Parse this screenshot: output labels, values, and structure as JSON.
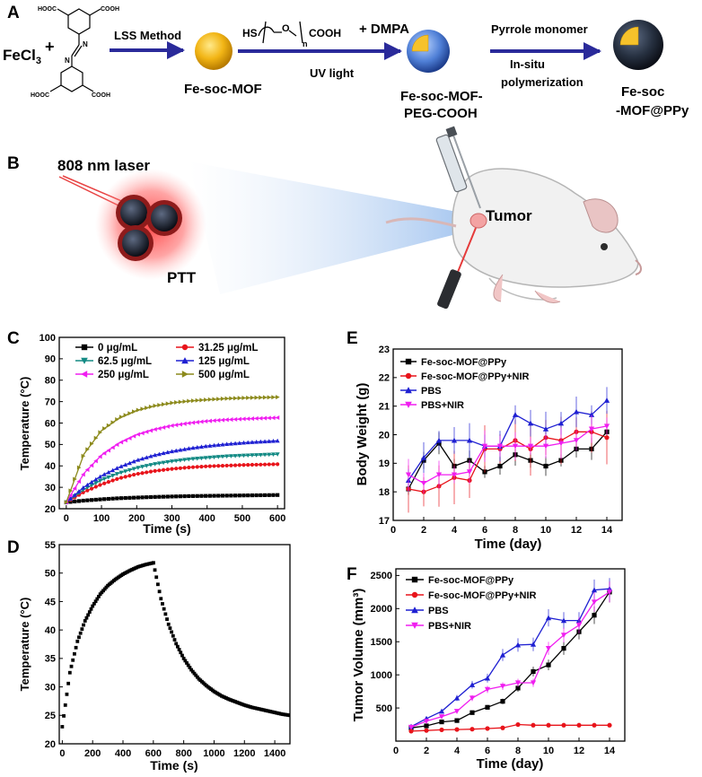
{
  "panel_a": {
    "letter": "A",
    "reagent_fecl3": "FeCl",
    "reagent_fecl3_sub": "3",
    "plus": "+",
    "ligand_cooh_label": "COOH",
    "ligand_hooc_label": "HOOC",
    "ligand_n": "N",
    "step1_label": "LSS Method",
    "product1": "Fe-soc-MOF",
    "peg_hs": "HS",
    "peg_o": "O",
    "peg_n": "n",
    "peg_cooh": "COOH",
    "peg_plus_dmpa": "+ DMPA",
    "step2_label": "UV light",
    "product2_line1": "Fe-soc-MOF-",
    "product2_line2": "PEG-COOH",
    "step3_label_top": "Pyrrole monomer",
    "step3_label_bottom1": "In-situ",
    "step3_label_bottom2": "polymerization",
    "product3_line1": "Fe-soc",
    "product3_line2": "-MOF@PPy"
  },
  "panel_b": {
    "letter": "B",
    "laser_label": "808 nm laser",
    "ptt_label": "PTT",
    "tumor_label": "Tumor"
  },
  "chart_data": [
    {
      "panel": "C",
      "type": "line",
      "title": "",
      "xlabel": "Time (s)",
      "ylabel": "Temperature (°C)",
      "xlim": [
        -20,
        620
      ],
      "ylim": [
        20,
        100
      ],
      "xticks": [
        0,
        100,
        200,
        300,
        400,
        500,
        600
      ],
      "yticks": [
        20,
        30,
        40,
        50,
        60,
        70,
        80,
        90,
        100
      ],
      "legend_position": "top-left, two columns",
      "x": [
        0,
        50,
        100,
        150,
        200,
        250,
        300,
        350,
        400,
        450,
        500,
        550,
        600
      ],
      "series": [
        {
          "name": "0 μg/mL",
          "color": "#000000",
          "marker": "square",
          "values": [
            23.0,
            23.8,
            24.4,
            24.9,
            25.2,
            25.5,
            25.7,
            25.9,
            26.0,
            26.1,
            26.2,
            26.3,
            26.4
          ]
        },
        {
          "name": "31.25 μg/mL",
          "color": "#e8141b",
          "marker": "circle",
          "values": [
            23.0,
            27.8,
            31.4,
            34.2,
            36.2,
            37.6,
            38.6,
            39.3,
            39.8,
            40.1,
            40.4,
            40.6,
            40.8
          ]
        },
        {
          "name": "62.5 μg/mL",
          "color": "#138a84",
          "marker": "triangle-down",
          "values": [
            23.0,
            29.0,
            33.4,
            36.6,
            39.0,
            40.8,
            42.1,
            43.1,
            43.8,
            44.4,
            44.8,
            45.1,
            45.4
          ]
        },
        {
          "name": "125 μg/mL",
          "color": "#1f20d2",
          "marker": "triangle-up",
          "values": [
            23.0,
            30.1,
            35.4,
            39.4,
            42.6,
            45.0,
            46.8,
            48.2,
            49.3,
            50.1,
            50.8,
            51.3,
            51.7
          ]
        },
        {
          "name": "250 μg/mL",
          "color": "#f01ef0",
          "marker": "triangle-left",
          "values": [
            23.0,
            36.5,
            45.0,
            50.6,
            54.5,
            57.0,
            58.8,
            60.0,
            60.9,
            61.5,
            61.9,
            62.2,
            62.5
          ]
        },
        {
          "name": "500 μg/mL",
          "color": "#8c8a1c",
          "marker": "triangle-right",
          "values": [
            23.0,
            45.5,
            56.5,
            62.4,
            65.9,
            68.0,
            69.4,
            70.3,
            70.9,
            71.4,
            71.7,
            71.9,
            72.1
          ]
        }
      ]
    },
    {
      "panel": "D",
      "type": "scatter",
      "title": "",
      "xlabel": "Time (s)",
      "ylabel": "Temperature (°C)",
      "xlim": [
        -20,
        1500
      ],
      "ylim": [
        20,
        55
      ],
      "xticks": [
        0,
        200,
        400,
        600,
        800,
        1000,
        1200,
        1400
      ],
      "yticks": [
        20,
        25,
        30,
        35,
        40,
        45,
        50,
        55
      ],
      "series": [
        {
          "name": "heating",
          "color": "#000000",
          "marker": "square",
          "x": [
            0,
            50,
            100,
            150,
            200,
            250,
            300,
            350,
            400,
            450,
            500,
            550,
            600
          ],
          "values": [
            23.0,
            32.5,
            38.0,
            41.6,
            44.2,
            46.3,
            47.8,
            48.9,
            49.8,
            50.5,
            51.1,
            51.5,
            51.8
          ]
        },
        {
          "name": "cooling",
          "color": "#000000",
          "marker": "square",
          "x": [
            600,
            650,
            700,
            750,
            800,
            850,
            900,
            950,
            1000,
            1050,
            1100,
            1150,
            1200,
            1250,
            1300,
            1350,
            1400,
            1450,
            1500
          ],
          "values": [
            51.8,
            45.5,
            41.0,
            37.6,
            35.0,
            33.0,
            31.4,
            30.2,
            29.2,
            28.4,
            27.8,
            27.3,
            26.8,
            26.4,
            26.1,
            25.8,
            25.5,
            25.2,
            25.0
          ]
        }
      ]
    },
    {
      "panel": "E",
      "type": "line",
      "title": "",
      "xlabel": "Time (day)",
      "ylabel": "Body Weight (g)",
      "xlim": [
        0,
        15
      ],
      "ylim": [
        17,
        23
      ],
      "xticks": [
        0,
        2,
        4,
        6,
        8,
        10,
        12,
        14
      ],
      "yticks": [
        17,
        18,
        19,
        20,
        21,
        22,
        23
      ],
      "legend_position": "top-left",
      "x": [
        1,
        2,
        3,
        4,
        5,
        6,
        7,
        8,
        9,
        10,
        11,
        12,
        13,
        14
      ],
      "series": [
        {
          "name": "Fe-soc-MOF@PPy",
          "color": "#000000",
          "marker": "square",
          "values": [
            18.1,
            19.1,
            19.7,
            18.9,
            19.1,
            18.7,
            18.9,
            19.3,
            19.1,
            18.9,
            19.1,
            19.5,
            19.5,
            20.1
          ]
        },
        {
          "name": "Fe-soc-MOF@PPy+NIR",
          "color": "#e8141b",
          "marker": "circle",
          "values": [
            18.1,
            18.0,
            18.2,
            18.5,
            18.4,
            19.5,
            19.5,
            19.8,
            19.5,
            19.9,
            19.8,
            20.1,
            20.1,
            19.9
          ]
        },
        {
          "name": "PBS",
          "color": "#1f20d2",
          "marker": "triangle-up",
          "values": [
            18.4,
            19.2,
            19.8,
            19.8,
            19.8,
            19.6,
            19.6,
            20.7,
            20.4,
            20.2,
            20.4,
            20.8,
            20.7,
            21.2
          ]
        },
        {
          "name": "PBS+NIR",
          "color": "#f01ef0",
          "marker": "triangle-down",
          "values": [
            18.6,
            18.3,
            18.6,
            18.6,
            18.7,
            19.6,
            19.6,
            19.6,
            19.6,
            19.6,
            19.7,
            19.8,
            20.2,
            20.3
          ]
        }
      ]
    },
    {
      "panel": "F",
      "type": "line",
      "title": "",
      "xlabel": "Time (day)",
      "ylabel": "Tumor Volume (mm³)",
      "xlim": [
        0,
        15
      ],
      "ylim": [
        0,
        2600
      ],
      "xticks": [
        0,
        2,
        4,
        6,
        8,
        10,
        12,
        14
      ],
      "yticks": [
        500,
        1000,
        1500,
        2000,
        2500
      ],
      "legend_position": "top-left",
      "x": [
        1,
        2,
        3,
        4,
        5,
        6,
        7,
        8,
        9,
        10,
        11,
        12,
        13,
        14
      ],
      "series": [
        {
          "name": "Fe-soc-MOF@PPy",
          "color": "#000000",
          "marker": "square",
          "values": [
            200,
            230,
            290,
            310,
            430,
            510,
            600,
            800,
            1050,
            1150,
            1400,
            1650,
            1900,
            2250
          ]
        },
        {
          "name": "Fe-soc-MOF@PPy+NIR",
          "color": "#e8141b",
          "marker": "circle",
          "values": [
            150,
            160,
            170,
            175,
            180,
            190,
            200,
            250,
            240,
            240,
            240,
            240,
            240,
            240
          ]
        },
        {
          "name": "PBS",
          "color": "#1f20d2",
          "marker": "triangle-up",
          "values": [
            220,
            340,
            450,
            650,
            850,
            950,
            1300,
            1450,
            1460,
            1860,
            1820,
            1820,
            2280,
            2300
          ]
        },
        {
          "name": "PBS+NIR",
          "color": "#f01ef0",
          "marker": "triangle-down",
          "values": [
            210,
            300,
            370,
            450,
            650,
            780,
            830,
            880,
            880,
            1400,
            1600,
            1750,
            2100,
            2250
          ]
        }
      ]
    }
  ]
}
